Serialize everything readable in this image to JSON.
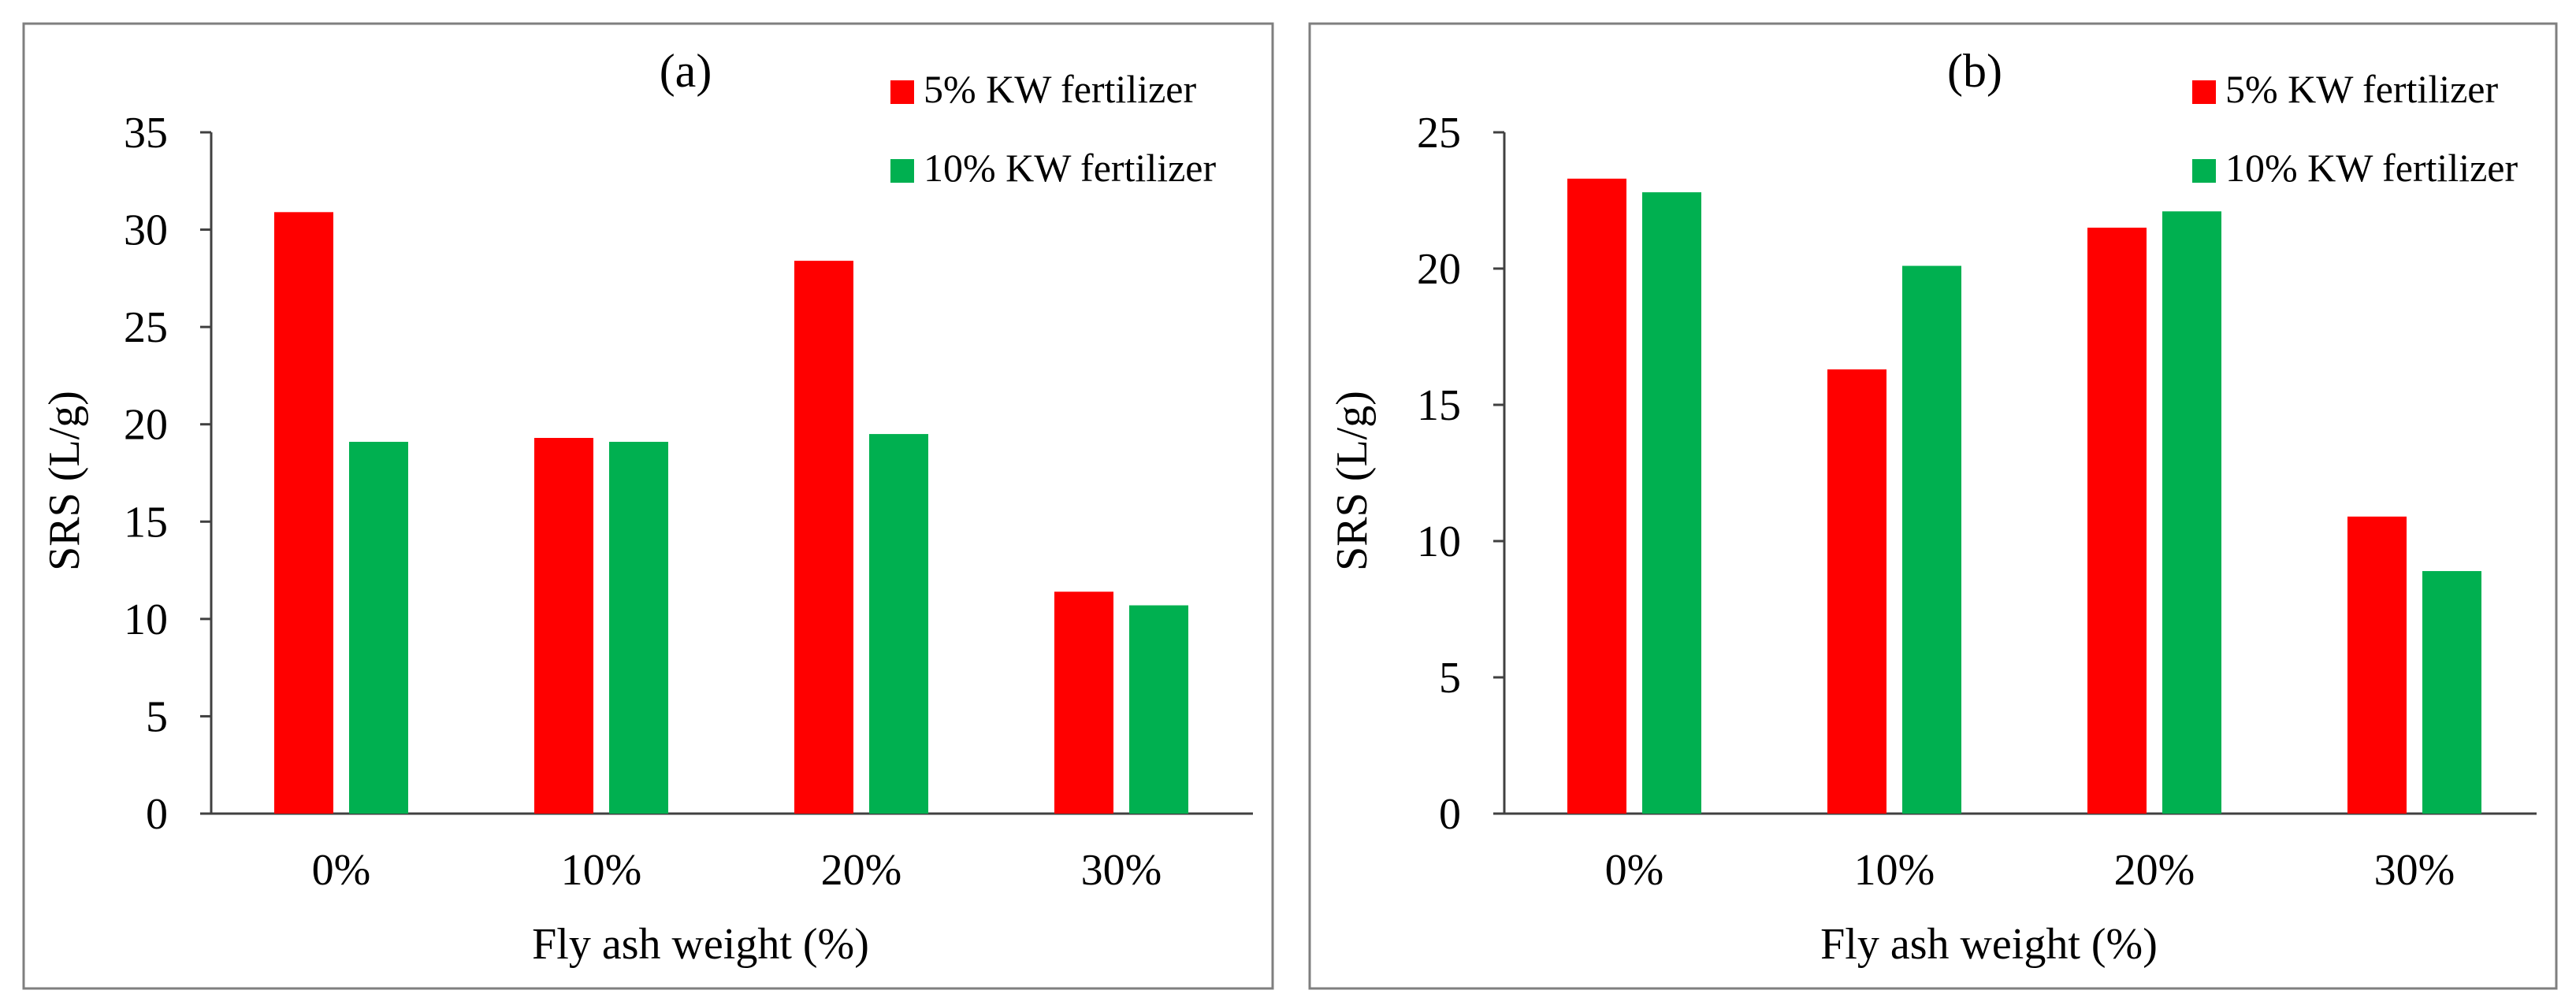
{
  "chart_data": [
    {
      "type": "bar",
      "title": "(a)",
      "xlabel": "Fly ash weight (%)",
      "ylabel": "SRS (L/g)",
      "ylim": [
        0,
        35
      ],
      "yticks": [
        0,
        5,
        10,
        15,
        20,
        25,
        30,
        35
      ],
      "categories": [
        "0%",
        "10%",
        "20%",
        "30%"
      ],
      "legend_position": "top-right",
      "series": [
        {
          "name": "5% KW fertilizer",
          "color": "#ff0000",
          "values": [
            30.9,
            19.3,
            28.4,
            11.4
          ]
        },
        {
          "name": "10% KW fertilizer",
          "color": "#00b050",
          "values": [
            19.1,
            19.1,
            19.5,
            10.7
          ]
        }
      ]
    },
    {
      "type": "bar",
      "title": "(b)",
      "xlabel": "Fly ash weight (%)",
      "ylabel": "SRS (L/g)",
      "ylim": [
        0,
        25
      ],
      "yticks": [
        0,
        5,
        10,
        15,
        20,
        25
      ],
      "categories": [
        "0%",
        "10%",
        "20%",
        "30%"
      ],
      "legend_position": "top-right",
      "series": [
        {
          "name": "5% KW fertilizer",
          "color": "#ff0000",
          "values": [
            23.3,
            16.3,
            21.5,
            10.9
          ]
        },
        {
          "name": "10% KW fertilizer",
          "color": "#00b050",
          "values": [
            22.8,
            20.1,
            22.1,
            8.9
          ]
        }
      ]
    }
  ]
}
